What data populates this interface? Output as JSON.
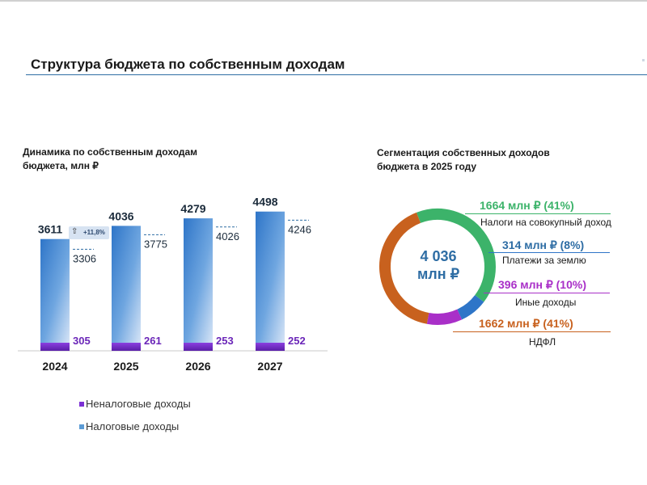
{
  "header": {
    "title": "Структура бюджета по собственным доходам"
  },
  "left_panel": {
    "title_line1": "Динамика по собственным доходам",
    "title_line2": "бюджета, млн ₽"
  },
  "right_panel": {
    "title_line1": "Сегментация собственных доходов",
    "title_line2": "бюджета в 2025 году",
    "center_line1": "4 036",
    "center_line2": "млн ₽"
  },
  "growth_badge": "+11,8%",
  "legend": [
    {
      "label": "Неналоговые доходы",
      "color": "#7b2fd4"
    },
    {
      "label": "Налоговые доходы",
      "color": "#5b9bd5"
    }
  ],
  "chart_data": [
    {
      "type": "bar",
      "categories": [
        "2024",
        "2025",
        "2026",
        "2027"
      ],
      "totals": [
        3611,
        4036,
        4279,
        4498
      ],
      "series": [
        {
          "name": "Налоговые доходы",
          "values": [
            3306,
            3775,
            4026,
            4246
          ]
        },
        {
          "name": "Неналоговые доходы",
          "values": [
            305,
            261,
            253,
            252
          ]
        }
      ],
      "title": "Динамика по собственным доходам бюджета, млн ₽",
      "colors": {
        "tax": "#2e75c8",
        "nontax": "#7b2fd4"
      }
    },
    {
      "type": "pie",
      "title": "Сегментация собственных доходов бюджета в 2025 году",
      "total": "4 036 млн ₽",
      "slices": [
        {
          "label": "Налоги на совокупный доход",
          "value": 1664,
          "percent": 41,
          "value_text": "1664 млн ₽ (41%)",
          "color": "#3cb36a"
        },
        {
          "label": "Платежи за землю",
          "value": 314,
          "percent": 8,
          "value_text": "314 млн ₽ (8%)",
          "color": "#2e75c8"
        },
        {
          "label": "Иные доходы",
          "value": 396,
          "percent": 10,
          "value_text": "396 млн ₽ (10%)",
          "color": "#a92fc8"
        },
        {
          "label": "НДФЛ",
          "value": 1662,
          "percent": 41,
          "value_text": "1662 млн ₽ (41%)",
          "color": "#c8611e"
        }
      ]
    }
  ]
}
